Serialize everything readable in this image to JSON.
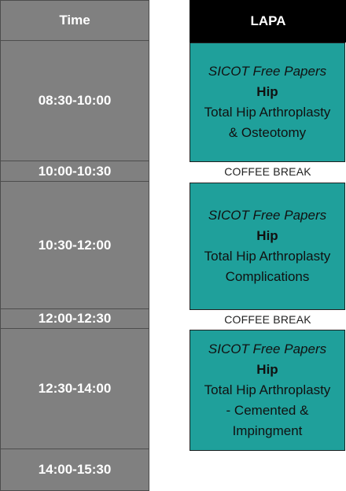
{
  "header": {
    "time_label": "Time",
    "room_label": "LAPA"
  },
  "time_slots": [
    "08:30-10:00",
    "10:00-10:30",
    "10:30-12:00",
    "12:00-12:30",
    "12:30-14:00",
    "14:00-15:30"
  ],
  "sessions": [
    {
      "title": "SICOT Free Papers",
      "topic": "Hip",
      "desc": [
        "Total Hip Arthroplasty",
        "& Osteotomy"
      ]
    },
    {
      "title": "SICOT Free Papers",
      "topic": "Hip",
      "desc": [
        "Total Hip Arthroplasty",
        "Complications"
      ]
    },
    {
      "title": "SICOT Free Papers",
      "topic": "Hip",
      "desc": [
        "Total Hip Arthroplasty",
        "- Cemented &",
        "Impingment"
      ]
    }
  ],
  "breaks": [
    "COFFEE BREAK",
    "COFFEE BREAK"
  ],
  "colors": {
    "session_bg": "#1fa09b",
    "time_bg": "#808080",
    "header_bg": "#000000"
  }
}
